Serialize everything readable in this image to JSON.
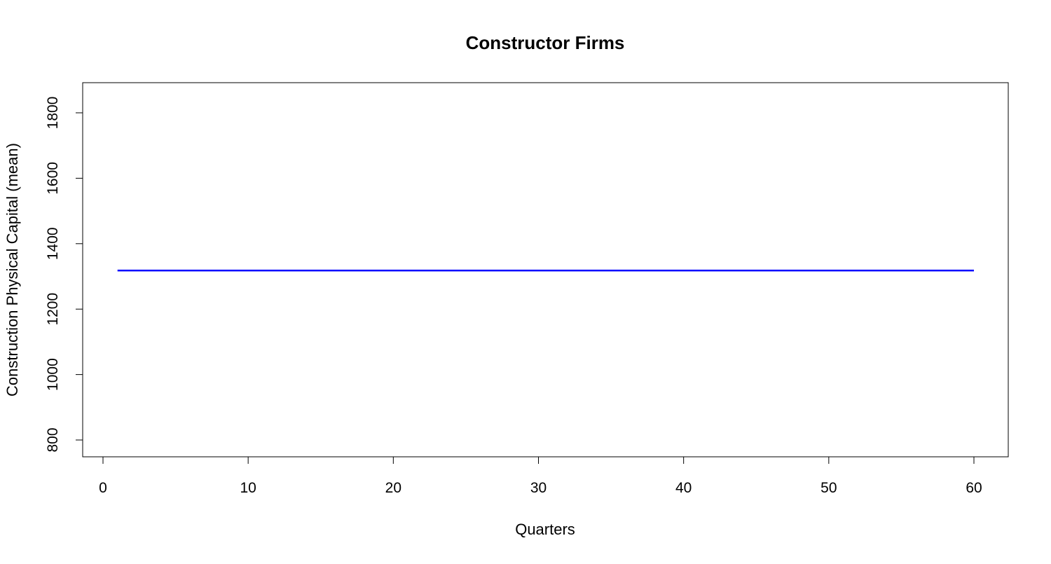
{
  "chart_data": {
    "type": "line",
    "title": "Constructor Firms",
    "xlabel": "Quarters",
    "ylabel": "Construction Physical Capital (mean)",
    "xlim": [
      0,
      60
    ],
    "ylim": [
      800,
      1800
    ],
    "x_ticks": [
      0,
      10,
      20,
      30,
      40,
      50,
      60
    ],
    "y_ticks": [
      800,
      1000,
      1200,
      1400,
      1600,
      1800
    ],
    "grid": false,
    "legend": "none",
    "series": [
      {
        "color": "#0000ff",
        "x": [
          1,
          60
        ],
        "y": [
          1318,
          1318
        ]
      }
    ]
  }
}
